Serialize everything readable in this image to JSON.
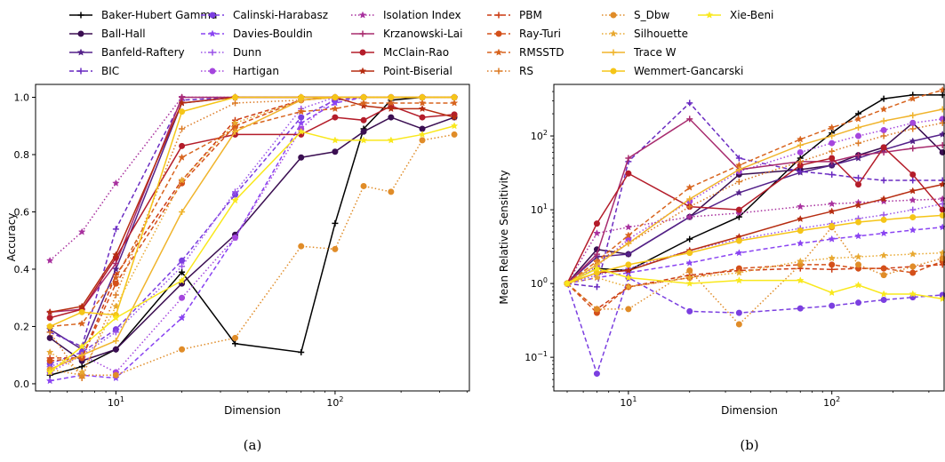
{
  "figure": {
    "captions": [
      "(a)",
      "(b)"
    ]
  },
  "legend": {
    "placement": "top",
    "entries": [
      {
        "label": "Baker-Hubert Gamma",
        "color": "#000000",
        "dash": "solid",
        "marker": "plus"
      },
      {
        "label": "Ball-Hall",
        "color": "#3b0f52",
        "dash": "solid",
        "marker": "circle"
      },
      {
        "label": "Banfeld-Raftery",
        "color": "#54218a",
        "dash": "solid",
        "marker": "star"
      },
      {
        "label": "BIC",
        "color": "#6a2bc2",
        "dash": "dashed",
        "marker": "plus"
      },
      {
        "label": "Calinski-Harabasz",
        "color": "#7b3fe0",
        "dash": "dashed",
        "marker": "circle"
      },
      {
        "label": "Davies-Bouldin",
        "color": "#8a44f2",
        "dash": "dashed",
        "marker": "star"
      },
      {
        "label": "Dunn",
        "color": "#9b54e8",
        "dash": "dotted",
        "marker": "plus"
      },
      {
        "label": "Hartigan",
        "color": "#a546de",
        "dash": "dotted",
        "marker": "circle"
      },
      {
        "label": "Isolation Index",
        "color": "#a8309e",
        "dash": "dotted",
        "marker": "star"
      },
      {
        "label": "Krzanowski-Lai",
        "color": "#a82b6e",
        "dash": "solid",
        "marker": "plus"
      },
      {
        "label": "McClain-Rao",
        "color": "#b41d2a",
        "dash": "solid",
        "marker": "circle"
      },
      {
        "label": "Point-Biserial",
        "color": "#b62c10",
        "dash": "solid",
        "marker": "star"
      },
      {
        "label": "PBM",
        "color": "#cc3c14",
        "dash": "dashed",
        "marker": "plus"
      },
      {
        "label": "Ray-Turi",
        "color": "#d4501a",
        "dash": "dashed",
        "marker": "circle"
      },
      {
        "label": "RMSSTD",
        "color": "#d8641e",
        "dash": "dashed",
        "marker": "star"
      },
      {
        "label": "RS",
        "color": "#dc7a24",
        "dash": "dotted",
        "marker": "plus"
      },
      {
        "label": "S_Dbw",
        "color": "#e08c28",
        "dash": "dotted",
        "marker": "circle"
      },
      {
        "label": "Silhouette",
        "color": "#e8a830",
        "dash": "dotted",
        "marker": "star"
      },
      {
        "label": "Trace W",
        "color": "#f0b42c",
        "dash": "solid",
        "marker": "plus"
      },
      {
        "label": "Wemmert-Gancarski",
        "color": "#f5c518",
        "dash": "solid",
        "marker": "circle"
      },
      {
        "label": "Xie-Beni",
        "color": "#f9e81c",
        "dash": "solid",
        "marker": "star"
      }
    ]
  },
  "chart_data": [
    {
      "type": "line",
      "xlabel": "Dimension",
      "ylabel": "Accuracy",
      "xscale": "log",
      "xlim": [
        4.3,
        410
      ],
      "ylim": [
        -0.025,
        1.045
      ],
      "yticks": [
        0.0,
        0.2,
        0.4,
        0.6,
        0.8,
        1.0
      ],
      "ytick_labels": [
        "0.0",
        "0.2",
        "0.4",
        "0.6",
        "0.8",
        "1.0"
      ],
      "xticks": [
        10,
        100
      ],
      "xtick_labels": [
        "10^1",
        "10^2"
      ],
      "grid": false,
      "x": [
        5,
        7,
        10,
        20,
        35,
        70,
        100,
        135,
        180,
        250,
        350
      ],
      "series": [
        {
          "name": "Baker-Hubert Gamma",
          "values": [
            0.03,
            0.06,
            0.12,
            0.39,
            0.14,
            0.11,
            0.56,
            0.89,
            0.99,
            1.0,
            1.0
          ]
        },
        {
          "name": "Ball-Hall",
          "values": [
            0.16,
            0.08,
            0.12,
            0.35,
            0.52,
            0.79,
            0.81,
            0.88,
            0.93,
            0.89,
            0.93
          ]
        },
        {
          "name": "Banfeld-Raftery",
          "values": [
            0.19,
            0.12,
            0.4,
            0.98,
            1.0,
            1.0,
            1.0,
            1.0,
            1.0,
            1.0,
            1.0
          ]
        },
        {
          "name": "BIC",
          "values": [
            0.18,
            0.13,
            0.54,
            0.99,
            1.0,
            1.0,
            1.0,
            1.0,
            1.0,
            1.0,
            1.0
          ]
        },
        {
          "name": "Calinski-Harabasz",
          "values": [
            0.07,
            0.11,
            0.19,
            0.43,
            0.66,
            0.93,
            0.99,
            1.0,
            1.0,
            1.0,
            1.0
          ]
        },
        {
          "name": "Davies-Bouldin",
          "values": [
            0.01,
            0.03,
            0.02,
            0.23,
            0.51,
            0.91,
            0.98,
            1.0,
            1.0,
            1.0,
            1.0
          ]
        },
        {
          "name": "Dunn",
          "values": [
            0.06,
            0.1,
            0.18,
            0.41,
            0.67,
            0.96,
            1.0,
            1.0,
            1.0,
            1.0,
            1.0
          ]
        },
        {
          "name": "Hartigan",
          "values": [
            0.04,
            0.1,
            0.04,
            0.3,
            0.51,
            0.89,
            1.0,
            1.0,
            1.0,
            1.0,
            1.0
          ]
        },
        {
          "name": "Isolation Index",
          "values": [
            0.43,
            0.53,
            0.7,
            1.0,
            1.0,
            1.0,
            1.0,
            1.0,
            1.0,
            1.0,
            1.0
          ]
        },
        {
          "name": "Krzanowski-Lai",
          "values": [
            0.25,
            0.26,
            0.42,
            1.0,
            1.0,
            1.0,
            1.0,
            1.0,
            1.0,
            1.0,
            1.0
          ]
        },
        {
          "name": "McClain-Rao",
          "values": [
            0.23,
            0.26,
            0.44,
            0.83,
            0.87,
            0.87,
            0.93,
            0.92,
            0.97,
            0.93,
            0.94
          ]
        },
        {
          "name": "Point-Biserial",
          "values": [
            0.25,
            0.27,
            0.45,
            0.98,
            1.0,
            1.0,
            1.0,
            0.97,
            0.96,
            0.96,
            0.93
          ]
        },
        {
          "name": "PBM",
          "values": [
            0.09,
            0.09,
            0.38,
            0.71,
            0.92,
            0.99,
            1.0,
            1.0,
            1.0,
            1.0,
            1.0
          ]
        },
        {
          "name": "Ray-Turi",
          "values": [
            0.08,
            0.09,
            0.35,
            0.7,
            0.9,
            0.99,
            1.0,
            1.0,
            1.0,
            1.0,
            1.0
          ]
        },
        {
          "name": "RMSSTD",
          "values": [
            0.2,
            0.21,
            0.37,
            0.79,
            0.89,
            0.95,
            0.96,
            0.98,
            0.98,
            0.98,
            0.98
          ]
        },
        {
          "name": "RS",
          "values": [
            0.18,
            0.02,
            0.31,
            0.89,
            0.98,
            0.99,
            1.0,
            1.0,
            1.0,
            1.0,
            1.0
          ]
        },
        {
          "name": "S_Dbw",
          "values": [
            0.05,
            0.03,
            0.03,
            0.12,
            0.16,
            0.48,
            0.47,
            0.69,
            0.67,
            0.85,
            0.87
          ]
        },
        {
          "name": "Silhouette",
          "values": [
            0.11,
            0.04,
            0.27,
            0.71,
            0.91,
            0.99,
            1.0,
            1.0,
            1.0,
            1.0,
            1.0
          ]
        },
        {
          "name": "Trace W",
          "values": [
            0.05,
            0.1,
            0.15,
            0.6,
            0.88,
            0.99,
            1.0,
            1.0,
            1.0,
            1.0,
            1.0
          ]
        },
        {
          "name": "Wemmert-Gancarski",
          "values": [
            0.2,
            0.25,
            0.24,
            0.95,
            1.0,
            1.0,
            1.0,
            1.0,
            1.0,
            1.0,
            1.0
          ]
        },
        {
          "name": "Xie-Beni",
          "values": [
            0.04,
            0.13,
            0.23,
            0.36,
            0.64,
            0.88,
            0.85,
            0.85,
            0.85,
            0.87,
            0.9
          ]
        }
      ]
    },
    {
      "type": "line",
      "xlabel": "Dimension",
      "ylabel": "Mean Relative Sensitivity",
      "xscale": "log",
      "yscale": "log",
      "xlim": [
        4.3,
        360
      ],
      "ylim": [
        0.035,
        500
      ],
      "yticks": [
        0.1,
        1,
        10,
        100
      ],
      "ytick_labels": [
        "10^-1",
        "10^0",
        "10^1",
        "10^2"
      ],
      "xticks": [
        10,
        100
      ],
      "xtick_labels": [
        "10^1",
        "10^2"
      ],
      "grid": false,
      "x": [
        5,
        7,
        10,
        20,
        35,
        70,
        100,
        135,
        180,
        250,
        350
      ],
      "series": [
        {
          "name": "Baker-Hubert Gamma",
          "values": [
            1.0,
            1.6,
            1.5,
            4.0,
            8.0,
            50,
            110,
            200,
            320,
            360,
            360
          ]
        },
        {
          "name": "Ball-Hall",
          "values": [
            1.0,
            2.9,
            2.5,
            8.0,
            30,
            35,
            40,
            55,
            70,
            150,
            60
          ]
        },
        {
          "name": "Banfeld-Raftery",
          "values": [
            1.0,
            2.3,
            2.5,
            8.0,
            17,
            32,
            40,
            50,
            65,
            85,
            105
          ]
        },
        {
          "name": "BIC",
          "values": [
            1.0,
            0.9,
            45,
            280,
            50,
            33,
            30,
            27,
            25,
            25,
            25
          ]
        },
        {
          "name": "Calinski-Harabasz",
          "values": [
            1.0,
            0.06,
            1.2,
            0.42,
            0.4,
            0.46,
            0.5,
            0.55,
            0.6,
            0.65,
            0.7
          ]
        },
        {
          "name": "Davies-Bouldin",
          "values": [
            1.0,
            1.2,
            1.4,
            1.9,
            2.6,
            3.5,
            4.0,
            4.4,
            4.8,
            5.3,
            5.8
          ]
        },
        {
          "name": "Dunn",
          "values": [
            1.0,
            1.3,
            1.6,
            2.8,
            4.0,
            5.6,
            6.5,
            7.6,
            8.5,
            10,
            12
          ]
        },
        {
          "name": "Hartigan",
          "values": [
            1.0,
            1.7,
            4.0,
            13,
            33,
            60,
            80,
            100,
            120,
            150,
            170
          ]
        },
        {
          "name": "Isolation Index",
          "values": [
            1.0,
            4.8,
            5.8,
            8.0,
            9.0,
            11,
            12,
            12.5,
            13,
            13.5,
            14
          ]
        },
        {
          "name": "Krzanowski-Lai",
          "values": [
            1.0,
            2.5,
            50,
            170,
            35,
            45,
            45,
            55,
            60,
            68,
            75
          ]
        },
        {
          "name": "McClain-Rao",
          "values": [
            1.0,
            6.5,
            31,
            11,
            10,
            40,
            50,
            22,
            70,
            30,
            10
          ]
        },
        {
          "name": "Point-Biserial",
          "values": [
            1.0,
            1.4,
            1.5,
            2.8,
            4.3,
            7.5,
            9.5,
            11.5,
            14,
            18,
            22
          ]
        },
        {
          "name": "PBM",
          "values": [
            1.0,
            0.45,
            0.9,
            1.3,
            1.5,
            1.6,
            1.55,
            1.6,
            1.6,
            1.7,
            1.8
          ]
        },
        {
          "name": "Ray-Turi",
          "values": [
            1.0,
            0.4,
            0.9,
            1.2,
            1.6,
            1.8,
            1.8,
            1.6,
            1.6,
            1.4,
            2.0
          ]
        },
        {
          "name": "RMSSTD",
          "values": [
            1.0,
            2.0,
            4.5,
            20,
            40,
            90,
            130,
            170,
            230,
            320,
            420
          ]
        },
        {
          "name": "RS",
          "values": [
            1.0,
            2.0,
            3.5,
            11,
            24,
            45,
            62,
            80,
            100,
            125,
            150
          ]
        },
        {
          "name": "S_Dbw",
          "values": [
            1.0,
            0.45,
            0.45,
            1.5,
            0.28,
            1.8,
            5.8,
            1.8,
            1.3,
            1.7,
            2.2
          ]
        },
        {
          "name": "Silhouette",
          "values": [
            1.0,
            1.2,
            0.9,
            1.2,
            1.4,
            2.0,
            2.2,
            2.3,
            2.4,
            2.5,
            2.6
          ]
        },
        {
          "name": "Trace W",
          "values": [
            1.0,
            1.8,
            3.5,
            14,
            35,
            75,
            100,
            130,
            160,
            190,
            230
          ]
        },
        {
          "name": "Wemmert-Gancarski",
          "values": [
            1.0,
            1.4,
            1.8,
            2.6,
            3.8,
            5.2,
            6.0,
            6.8,
            7.3,
            7.9,
            8.4
          ]
        },
        {
          "name": "Xie-Beni",
          "values": [
            1.0,
            1.6,
            1.2,
            1.0,
            1.1,
            1.1,
            0.75,
            0.95,
            0.72,
            0.72,
            0.62
          ]
        }
      ]
    }
  ]
}
